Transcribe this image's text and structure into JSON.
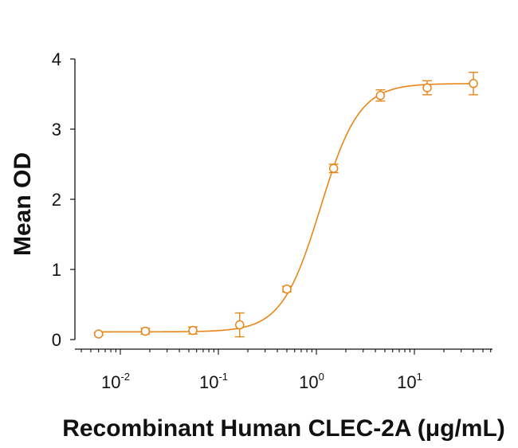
{
  "chart_data": {
    "type": "scatter",
    "xlabel": "Recombinant Human CLEC-2A (μg/mL)",
    "ylabel": "Mean OD",
    "xscale": "log",
    "xlim": [
      0.004,
      60
    ],
    "ylim": [
      -0.1,
      4
    ],
    "yticks": [
      0,
      1,
      2,
      3,
      4
    ],
    "xticks": [
      {
        "base": "10",
        "exp": "-2",
        "value": 0.01
      },
      {
        "base": "10",
        "exp": "-1",
        "value": 0.1
      },
      {
        "base": "10",
        "exp": "0",
        "value": 1
      },
      {
        "base": "10",
        "exp": "1",
        "value": 10
      }
    ],
    "series": [
      {
        "color": "#E8861A",
        "marker": "open-circle",
        "fit": "4PL sigmoid",
        "points": [
          {
            "x": 0.006,
            "y": 0.08,
            "err": 0.02
          },
          {
            "x": 0.018,
            "y": 0.12,
            "err": 0.04
          },
          {
            "x": 0.055,
            "y": 0.13,
            "err": 0.05
          },
          {
            "x": 0.165,
            "y": 0.21,
            "err": 0.17
          },
          {
            "x": 0.5,
            "y": 0.72,
            "err": 0.04
          },
          {
            "x": 1.5,
            "y": 2.44,
            "err": 0.06
          },
          {
            "x": 4.5,
            "y": 3.48,
            "err": 0.08
          },
          {
            "x": 13.5,
            "y": 3.59,
            "err": 0.1
          },
          {
            "x": 40,
            "y": 3.65,
            "err": 0.16
          }
        ],
        "fit_params": {
          "bottom": 0.11,
          "top": 3.65,
          "ec50": 1.1,
          "hill": 2.2
        }
      }
    ],
    "grid": false
  }
}
